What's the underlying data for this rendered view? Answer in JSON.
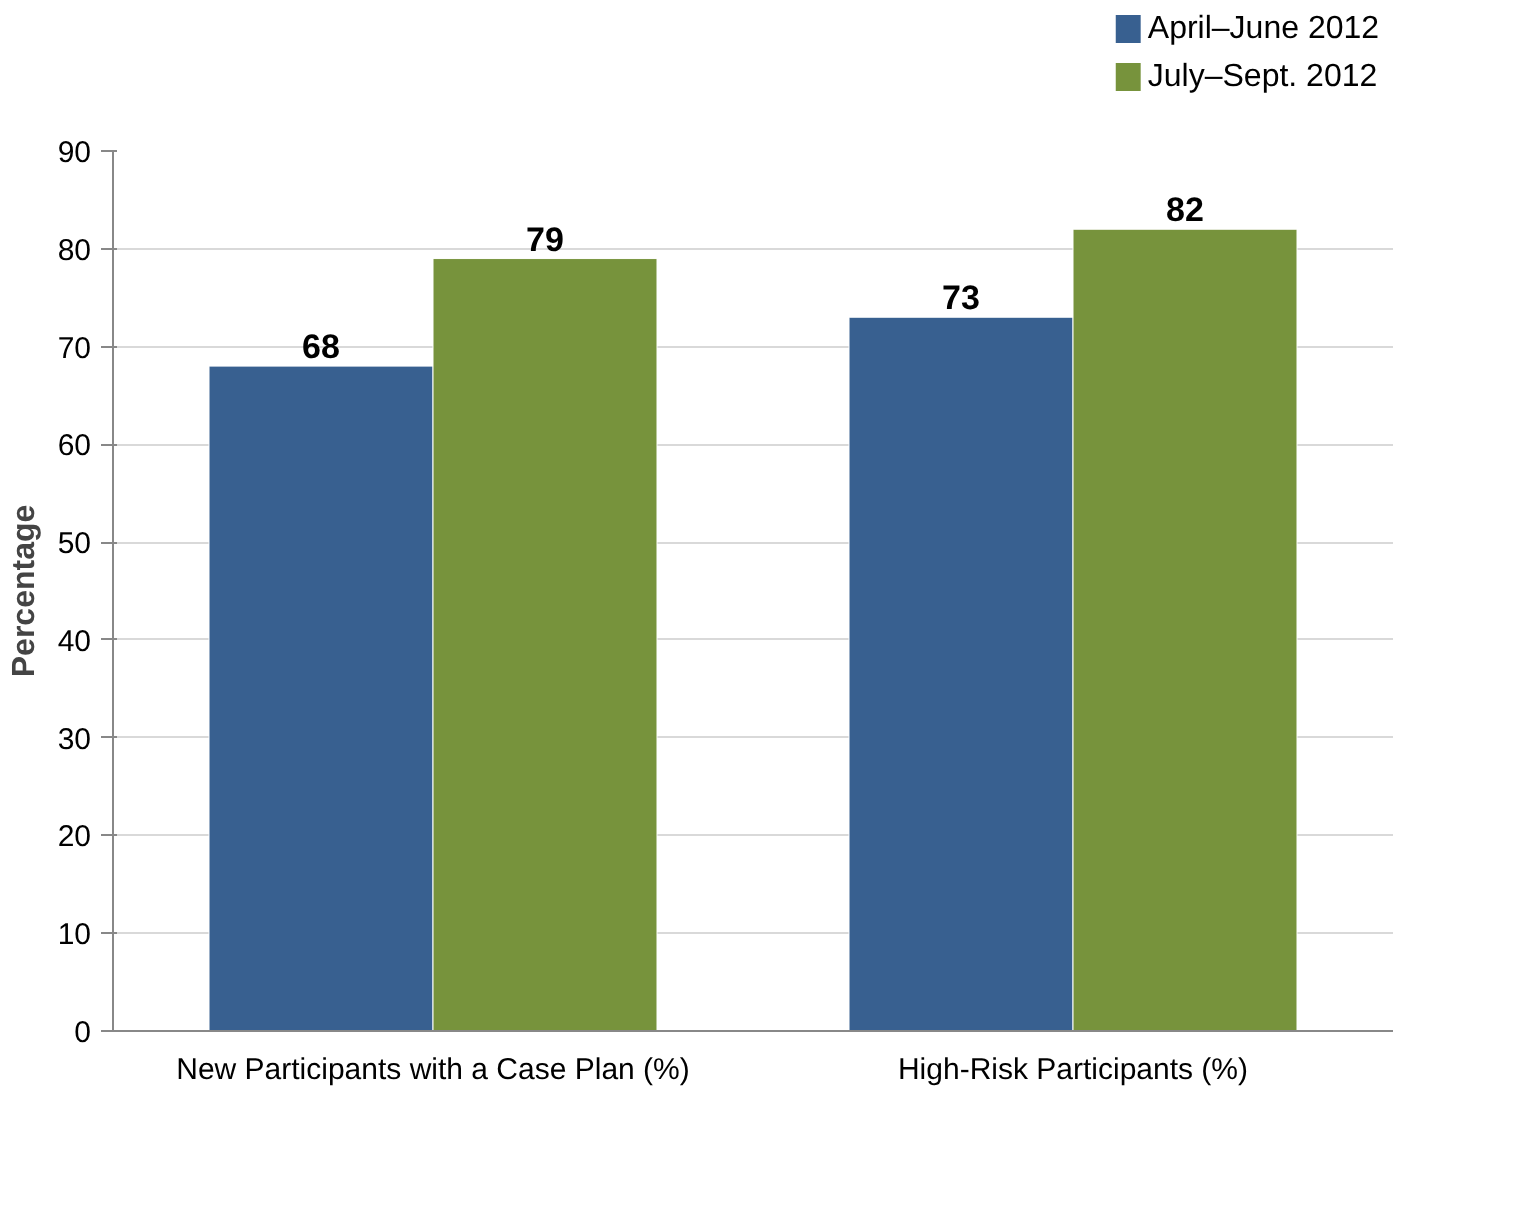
{
  "chart_data": {
    "type": "bar",
    "ylabel": "Percentage",
    "categories": [
      "New Participants with a Case Plan (%)",
      "High-Risk Participants (%)"
    ],
    "series": [
      {
        "name": "April–June 2012",
        "color": "#386090",
        "values": [
          68,
          73
        ]
      },
      {
        "name": "July–Sept. 2012",
        "color": "#77933c",
        "values": [
          79,
          82
        ]
      }
    ],
    "ylim": [
      0,
      90
    ],
    "yticks": [
      0,
      10,
      20,
      30,
      40,
      50,
      60,
      70,
      80,
      90
    ],
    "grid": "y",
    "legend": "top right",
    "data_labels": true
  }
}
